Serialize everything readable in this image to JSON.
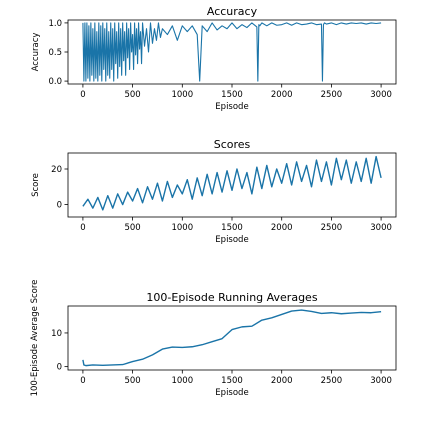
{
  "chart_data": [
    {
      "type": "line",
      "title": "Accuracy",
      "xlabel": "Episode",
      "ylabel": "Accuracy",
      "xlim": [
        -150,
        3150
      ],
      "ylim": [
        -0.05,
        1.05
      ],
      "xticks": [
        0,
        500,
        1000,
        1500,
        2000,
        2500,
        3000
      ],
      "yticks": [
        0.0,
        0.5,
        1.0
      ],
      "ytick_labels": [
        "0.0",
        "0.5",
        "1.0"
      ],
      "grid": false,
      "color": "#1a74a8",
      "series": [
        {
          "x": [
            0,
            10,
            20,
            30,
            40,
            50,
            60,
            70,
            80,
            90,
            100,
            110,
            120,
            130,
            140,
            150,
            160,
            170,
            180,
            190,
            200,
            210,
            220,
            230,
            240,
            250,
            260,
            270,
            280,
            290,
            300,
            310,
            320,
            330,
            340,
            350,
            360,
            370,
            380,
            390,
            400,
            410,
            420,
            430,
            440,
            450,
            460,
            470,
            480,
            490,
            500,
            510,
            520,
            530,
            540,
            550,
            560,
            570,
            580,
            590,
            600,
            620,
            640,
            660,
            680,
            700,
            720,
            740,
            760,
            780,
            800,
            850,
            900,
            950,
            1000,
            1050,
            1100,
            1150,
            1175,
            1200,
            1250,
            1300,
            1350,
            1400,
            1450,
            1500,
            1550,
            1600,
            1650,
            1700,
            1750,
            1760,
            1770,
            1780,
            1800,
            1850,
            1900,
            1950,
            2000,
            2050,
            2100,
            2150,
            2200,
            2250,
            2300,
            2350,
            2400,
            2410,
            2420,
            2430,
            2450,
            2500,
            2550,
            2600,
            2650,
            2700,
            2750,
            2800,
            2850,
            2900,
            2950,
            3000
          ],
          "y": [
            1.0,
            0.0,
            1.0,
            0.0,
            1.0,
            0.05,
            0.95,
            0.0,
            1.0,
            0.1,
            0.9,
            0.0,
            1.0,
            0.05,
            0.85,
            0.0,
            1.0,
            0.1,
            0.95,
            0.0,
            1.0,
            0.2,
            0.9,
            0.0,
            1.0,
            0.1,
            0.85,
            0.05,
            1.0,
            0.2,
            0.9,
            0.0,
            1.0,
            0.3,
            0.85,
            0.05,
            1.0,
            0.25,
            0.9,
            0.1,
            1.0,
            0.35,
            0.85,
            0.1,
            1.0,
            0.4,
            0.9,
            0.2,
            1.0,
            0.5,
            0.8,
            0.2,
            1.0,
            0.45,
            0.9,
            0.3,
            1.0,
            0.55,
            0.85,
            0.3,
            1.0,
            0.6,
            0.9,
            0.5,
            1.0,
            0.65,
            0.9,
            0.7,
            1.0,
            0.75,
            0.9,
            0.8,
            0.95,
            0.7,
            0.95,
            0.85,
            0.95,
            0.8,
            0.0,
            0.95,
            0.85,
            1.0,
            0.88,
            0.95,
            0.9,
            1.0,
            0.9,
            0.97,
            0.92,
            1.0,
            0.93,
            0.0,
            0.97,
            0.95,
            1.0,
            0.95,
            1.0,
            0.96,
            0.97,
            1.0,
            0.96,
            1.0,
            0.97,
            0.98,
            1.0,
            0.97,
            0.98,
            0.0,
            0.97,
            1.0,
            0.98,
            1.0,
            0.97,
            1.0,
            0.98,
            1.0,
            0.99,
            1.0,
            0.98,
            1.0,
            0.99,
            1.0
          ]
        }
      ]
    },
    {
      "type": "line",
      "title": "Scores",
      "xlabel": "Episode",
      "ylabel": "Score",
      "xlim": [
        -150,
        3150
      ],
      "ylim": [
        -7,
        29
      ],
      "xticks": [
        0,
        500,
        1000,
        1500,
        2000,
        2500,
        3000
      ],
      "yticks": [
        0,
        20
      ],
      "ytick_labels": [
        "0",
        "20"
      ],
      "grid": false,
      "color": "#1a74a8",
      "series": [
        {
          "x": [
            0,
            50,
            100,
            150,
            200,
            250,
            300,
            350,
            400,
            450,
            500,
            550,
            600,
            650,
            700,
            750,
            800,
            850,
            900,
            950,
            1000,
            1050,
            1100,
            1150,
            1200,
            1250,
            1300,
            1350,
            1400,
            1450,
            1500,
            1550,
            1600,
            1650,
            1700,
            1750,
            1800,
            1850,
            1900,
            1950,
            2000,
            2050,
            2100,
            2150,
            2200,
            2250,
            2300,
            2350,
            2400,
            2450,
            2500,
            2550,
            2600,
            2650,
            2700,
            2750,
            2800,
            2850,
            2900,
            2950,
            3000
          ],
          "y": [
            -1,
            3,
            -2,
            4,
            -3,
            5,
            -2,
            6,
            0,
            7,
            2,
            9,
            1,
            10,
            3,
            12,
            2,
            13,
            4,
            11,
            6,
            14,
            3,
            15,
            5,
            17,
            6,
            18,
            7,
            19,
            8,
            20,
            9,
            18,
            6,
            21,
            9,
            22,
            10,
            20,
            12,
            23,
            11,
            24,
            13,
            22,
            10,
            25,
            13,
            24,
            11,
            26,
            14,
            25,
            12,
            24,
            13,
            26,
            12,
            27,
            15
          ]
        }
      ]
    },
    {
      "type": "line",
      "title": "100-Episode Running Averages",
      "xlabel": "Episode",
      "ylabel": "100-Episode Average Score",
      "xlim": [
        -150,
        3150
      ],
      "ylim": [
        -1,
        18
      ],
      "xticks": [
        0,
        500,
        1000,
        1500,
        2000,
        2500,
        3000
      ],
      "yticks": [
        0,
        10
      ],
      "ytick_labels": [
        "0",
        "10"
      ],
      "grid": false,
      "color": "#1a74a8",
      "series": [
        {
          "x": [
            0,
            10,
            30,
            100,
            200,
            300,
            400,
            500,
            600,
            700,
            800,
            900,
            1000,
            1100,
            1200,
            1300,
            1400,
            1500,
            1600,
            1700,
            1800,
            1900,
            2000,
            2100,
            2200,
            2300,
            2400,
            2500,
            2600,
            2700,
            2800,
            2900,
            3000
          ],
          "y": [
            2.0,
            0.5,
            0.3,
            0.5,
            0.4,
            0.5,
            0.6,
            1.5,
            2.2,
            3.5,
            5.2,
            5.8,
            5.7,
            5.9,
            6.5,
            7.4,
            8.3,
            11.0,
            11.8,
            12.0,
            13.8,
            14.5,
            15.5,
            16.5,
            16.8,
            16.4,
            15.8,
            16.0,
            15.7,
            15.9,
            16.1,
            16.0,
            16.3
          ]
        }
      ]
    }
  ]
}
